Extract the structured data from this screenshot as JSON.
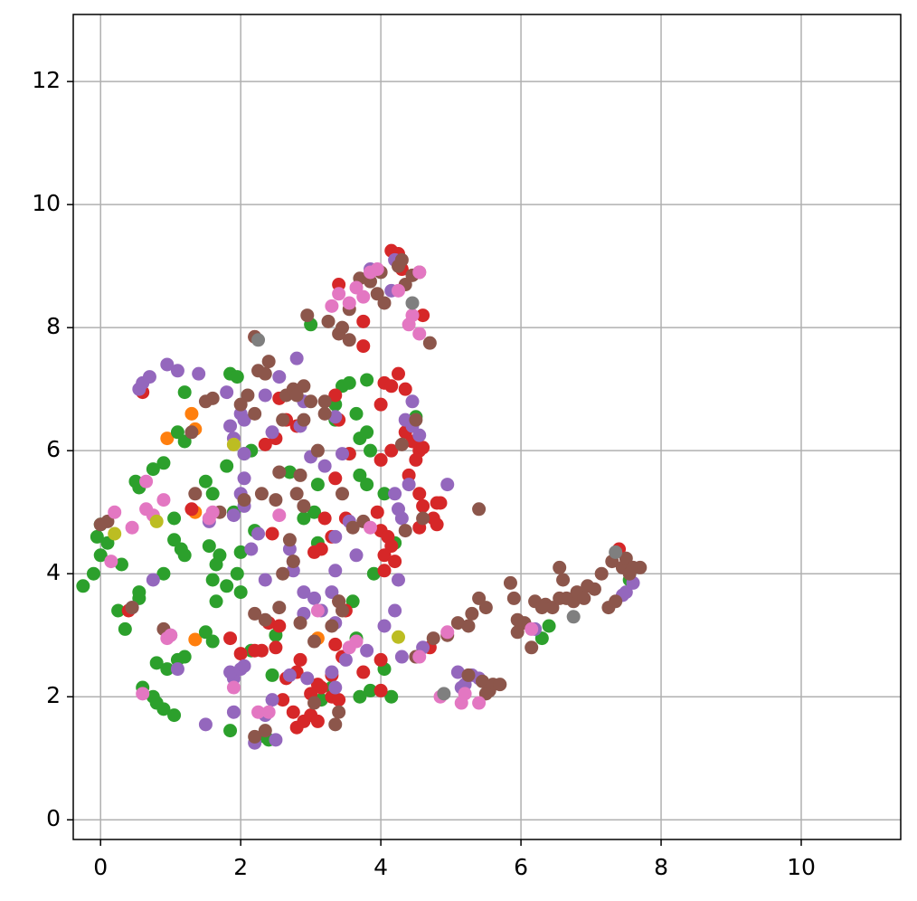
{
  "chart_data": {
    "type": "scatter",
    "grid": true,
    "xlim": [
      -0.39,
      11.42
    ],
    "ylim": [
      -0.32,
      13.09
    ],
    "xticks": [
      0,
      2,
      4,
      6,
      8,
      10
    ],
    "yticks": [
      0,
      2,
      4,
      6,
      8,
      10,
      12
    ],
    "series": [
      {
        "color": "#ff7f0e",
        "x": [
          1.3,
          0.95,
          1.35,
          1.35,
          1.35,
          3.1
        ],
        "y": [
          6.6,
          6.2,
          6.35,
          5.0,
          2.93,
          2.95
        ]
      },
      {
        "color": "#2ca02c",
        "x": [
          -0.25,
          -0.1,
          0.0,
          -0.05,
          0.0,
          0.1,
          0.3,
          0.25,
          0.35,
          0.55,
          0.55,
          0.6,
          0.75,
          0.8,
          0.9,
          1.05,
          0.8,
          0.95,
          1.1,
          1.2,
          0.9,
          1.05,
          1.15,
          1.2,
          0.55,
          0.5,
          0.75,
          0.9,
          1.1,
          1.2,
          1.2,
          1.05,
          1.5,
          1.6,
          1.55,
          1.7,
          1.65,
          1.6,
          1.65,
          1.8,
          1.5,
          1.6,
          1.85,
          2.35,
          2.4,
          2.45,
          2.15,
          2.5,
          2.7,
          2.9,
          3.05,
          3.1,
          3.1,
          3.0,
          3.35,
          3.45,
          3.55,
          3.35,
          3.55,
          3.7,
          3.8,
          3.65,
          3.7,
          3.8,
          3.8,
          3.85,
          3.9,
          4.05,
          4.2,
          4.05,
          4.15,
          3.85,
          3.7,
          3.6,
          3.65,
          3.15,
          3.3,
          4.5,
          4.4,
          6.4,
          6.3,
          7.55,
          1.85,
          1.95,
          1.8,
          1.9,
          2.05,
          2.15,
          2.0,
          1.95,
          2.0,
          2.2
        ],
        "y": [
          3.8,
          4.0,
          4.3,
          4.6,
          4.8,
          4.5,
          4.15,
          3.4,
          3.1,
          3.6,
          3.7,
          2.15,
          2.0,
          1.9,
          1.8,
          1.7,
          2.55,
          2.45,
          2.6,
          2.65,
          4.0,
          4.55,
          4.4,
          4.3,
          5.4,
          5.5,
          5.7,
          5.8,
          6.3,
          6.15,
          6.95,
          4.9,
          5.5,
          5.3,
          4.45,
          4.3,
          4.15,
          3.9,
          3.55,
          3.8,
          3.05,
          2.9,
          1.45,
          1.35,
          1.3,
          2.35,
          2.75,
          3.0,
          5.65,
          4.9,
          5.0,
          4.5,
          5.45,
          8.05,
          6.75,
          7.05,
          7.1,
          6.5,
          5.95,
          5.6,
          5.45,
          6.6,
          6.2,
          6.3,
          7.15,
          6.0,
          4.0,
          5.3,
          4.5,
          2.45,
          2.0,
          2.1,
          2.0,
          3.55,
          2.95,
          1.95,
          2.15,
          6.55,
          6.4,
          3.15,
          2.95,
          3.9,
          7.25,
          7.2,
          5.75,
          5.0,
          5.95,
          6.0,
          4.35,
          4.0,
          3.7,
          4.7
        ]
      },
      {
        "color": "#d62728",
        "x": [
          4.15,
          4.25,
          4.3,
          3.4,
          3.75,
          3.75,
          4.6,
          4.05,
          4.15,
          4.25,
          4.35,
          4.0,
          4.35,
          4.45,
          4.55,
          4.6,
          4.15,
          4.0,
          4.5,
          4.4,
          4.55,
          4.6,
          4.75,
          4.8,
          4.85,
          4.8,
          4.55,
          4.0,
          4.1,
          4.15,
          4.05,
          4.2,
          3.95,
          4.05,
          3.55,
          3.35,
          3.4,
          3.35,
          3.2,
          3.3,
          3.05,
          3.15,
          2.8,
          2.65,
          2.5,
          2.35,
          2.55,
          2.2,
          3.4,
          3.5,
          3.35,
          3.45,
          3.3,
          3.15,
          3.0,
          3.1,
          3.3,
          3.4,
          2.75,
          2.8,
          2.9,
          3.0,
          3.1,
          2.6,
          2.65,
          2.85,
          2.8,
          2.5,
          2.3,
          2.2,
          2.0,
          1.85,
          4.0,
          4.0,
          3.75,
          2.4,
          2.55,
          0.4,
          0.6,
          4.7,
          7.4,
          1.3,
          2.45,
          3.5
        ],
        "y": [
          9.25,
          9.2,
          8.95,
          8.7,
          8.1,
          7.7,
          8.2,
          7.1,
          7.05,
          7.25,
          7.0,
          6.75,
          6.3,
          6.15,
          6.0,
          6.05,
          6.0,
          5.85,
          5.85,
          5.6,
          5.3,
          5.1,
          4.9,
          5.15,
          5.15,
          4.8,
          4.75,
          4.7,
          4.6,
          4.45,
          4.3,
          4.2,
          5.0,
          4.05,
          5.95,
          6.9,
          6.5,
          5.55,
          4.9,
          4.6,
          4.35,
          4.4,
          6.4,
          6.5,
          6.2,
          6.1,
          6.85,
          7.85,
          3.55,
          3.4,
          2.85,
          2.65,
          2.35,
          2.15,
          2.05,
          2.2,
          2.0,
          1.95,
          1.75,
          1.5,
          1.6,
          1.7,
          1.6,
          1.95,
          2.3,
          2.6,
          2.4,
          2.8,
          2.75,
          2.75,
          2.7,
          2.95,
          2.6,
          2.1,
          2.4,
          3.2,
          3.15,
          3.4,
          6.95,
          2.8,
          4.4,
          5.05,
          4.65,
          4.9
        ]
      },
      {
        "color": "#9467bd",
        "x": [
          0.55,
          0.6,
          0.7,
          0.95,
          1.1,
          1.4,
          1.8,
          2.0,
          1.85,
          1.9,
          2.05,
          2.35,
          2.55,
          2.8,
          2.05,
          2.05,
          2.05,
          1.9,
          2.15,
          2.25,
          2.0,
          2.45,
          2.85,
          3.0,
          3.2,
          3.45,
          2.9,
          3.35,
          2.7,
          2.75,
          2.9,
          3.05,
          3.3,
          3.35,
          3.35,
          3.55,
          3.65,
          3.15,
          3.35,
          2.9,
          2.35,
          2.95,
          3.3,
          3.5,
          3.35,
          2.7,
          2.45,
          2.35,
          2.2,
          2.5,
          1.9,
          1.85,
          2.0,
          2.05,
          1.5,
          1.9,
          1.1,
          1.0,
          0.75,
          0.45,
          4.05,
          4.2,
          4.25,
          4.3,
          4.25,
          4.4,
          4.2,
          4.35,
          4.45,
          4.45,
          4.55,
          4.95,
          4.3,
          4.6,
          4.15,
          3.85,
          4.2,
          3.8,
          5.1,
          5.2,
          5.3,
          5.4,
          5.15,
          7.5,
          7.6,
          7.45,
          6.2,
          1.55,
          2.75
        ],
        "y": [
          7.0,
          7.1,
          7.2,
          7.4,
          7.3,
          7.25,
          6.95,
          6.6,
          6.4,
          6.2,
          6.5,
          6.9,
          7.2,
          7.5,
          5.95,
          5.55,
          5.1,
          4.95,
          4.4,
          4.65,
          5.3,
          6.3,
          6.4,
          5.9,
          5.75,
          5.95,
          6.8,
          6.55,
          4.4,
          4.05,
          3.7,
          3.6,
          3.7,
          4.05,
          4.6,
          4.85,
          4.3,
          3.4,
          3.2,
          3.35,
          3.9,
          2.3,
          2.4,
          2.6,
          2.15,
          2.35,
          1.95,
          1.7,
          1.25,
          1.3,
          2.3,
          2.4,
          2.45,
          2.5,
          1.55,
          1.75,
          2.45,
          3.0,
          3.9,
          3.45,
          3.15,
          3.4,
          3.9,
          4.9,
          5.05,
          5.45,
          5.3,
          6.5,
          6.8,
          6.4,
          6.25,
          5.45,
          2.65,
          2.8,
          8.6,
          8.95,
          9.1,
          2.75,
          2.4,
          2.2,
          2.35,
          2.3,
          2.15,
          3.7,
          3.85,
          3.65,
          3.1,
          4.85,
          4.2
        ]
      },
      {
        "color": "#8c564b",
        "x": [
          0.0,
          0.1,
          0.45,
          0.9,
          1.35,
          1.3,
          1.5,
          1.6,
          1.7,
          2.0,
          2.1,
          2.2,
          2.25,
          2.35,
          2.4,
          2.2,
          2.05,
          2.3,
          2.5,
          2.55,
          2.6,
          2.65,
          2.75,
          2.8,
          2.9,
          3.0,
          2.9,
          2.85,
          2.8,
          2.9,
          2.7,
          2.75,
          2.6,
          2.55,
          2.35,
          2.2,
          2.85,
          3.05,
          3.3,
          3.45,
          3.4,
          3.45,
          3.6,
          3.75,
          3.2,
          3.2,
          3.1,
          2.95,
          3.25,
          3.4,
          3.55,
          3.45,
          3.55,
          3.7,
          3.85,
          3.95,
          4.05,
          4.0,
          4.25,
          4.3,
          4.35,
          4.45,
          4.55,
          4.7,
          4.5,
          4.3,
          4.35,
          4.6,
          4.5,
          4.75,
          4.95,
          5.1,
          5.25,
          5.3,
          5.4,
          5.5,
          5.25,
          5.45,
          5.55,
          5.6,
          5.7,
          5.5,
          5.85,
          5.9,
          5.95,
          5.95,
          6.05,
          6.15,
          6.2,
          6.3,
          6.35,
          6.45,
          6.55,
          6.55,
          6.6,
          6.65,
          6.75,
          6.8,
          6.9,
          6.95,
          7.05,
          7.15,
          7.25,
          7.3,
          7.35,
          7.45,
          7.5,
          7.6,
          7.7,
          7.55,
          5.4,
          3.35,
          3.4,
          2.35,
          2.2,
          3.05
        ],
        "y": [
          4.8,
          4.85,
          3.45,
          3.1,
          5.3,
          6.3,
          6.8,
          6.85,
          5.0,
          6.75,
          6.9,
          6.6,
          7.3,
          7.25,
          7.45,
          7.85,
          5.2,
          5.3,
          5.2,
          5.65,
          6.5,
          6.9,
          7.0,
          6.9,
          7.05,
          6.8,
          6.5,
          5.6,
          5.3,
          5.1,
          4.55,
          4.2,
          4.0,
          3.45,
          3.25,
          3.35,
          3.2,
          2.9,
          3.15,
          3.4,
          3.55,
          5.3,
          4.75,
          4.85,
          6.6,
          6.8,
          6.0,
          8.2,
          8.1,
          7.9,
          7.8,
          8.0,
          8.3,
          8.8,
          8.75,
          8.55,
          8.4,
          8.9,
          9.0,
          9.1,
          8.7,
          8.85,
          8.9,
          7.75,
          6.5,
          6.1,
          4.7,
          4.9,
          2.65,
          2.95,
          3.0,
          3.2,
          3.15,
          3.35,
          3.6,
          3.45,
          2.35,
          2.25,
          2.1,
          2.2,
          2.2,
          2.05,
          3.85,
          3.6,
          3.25,
          3.05,
          3.2,
          2.8,
          3.55,
          3.45,
          3.5,
          3.45,
          3.6,
          4.1,
          3.9,
          3.6,
          3.55,
          3.7,
          3.6,
          3.8,
          3.75,
          4.0,
          3.45,
          4.2,
          3.55,
          4.1,
          4.25,
          4.1,
          4.1,
          4.0,
          5.05,
          1.55,
          1.75,
          1.45,
          1.35,
          1.9
        ]
      },
      {
        "color": "#e377c2",
        "x": [
          0.15,
          0.2,
          0.45,
          0.65,
          0.65,
          0.75,
          0.9,
          0.95,
          1.0,
          0.6,
          1.55,
          1.6,
          1.9,
          2.25,
          2.4,
          2.55,
          3.1,
          3.55,
          3.65,
          3.3,
          3.4,
          3.55,
          3.65,
          3.75,
          3.85,
          3.95,
          4.25,
          4.4,
          4.45,
          4.55,
          4.55,
          4.95,
          4.85,
          5.15,
          5.2,
          5.4,
          6.15,
          4.55,
          1.9,
          3.85
        ],
        "y": [
          4.2,
          5.0,
          4.75,
          5.05,
          5.5,
          4.95,
          5.2,
          2.95,
          3.0,
          2.05,
          4.9,
          5.0,
          2.15,
          1.75,
          1.75,
          4.95,
          3.4,
          2.8,
          2.9,
          8.35,
          8.55,
          8.4,
          8.65,
          8.5,
          8.9,
          8.95,
          8.6,
          8.05,
          8.2,
          7.9,
          8.9,
          3.05,
          2.0,
          1.9,
          2.05,
          1.9,
          3.1,
          2.65,
          6.1,
          4.75
        ]
      },
      {
        "color": "#7f7f7f",
        "x": [
          2.25,
          4.45,
          4.9,
          7.35,
          6.75
        ],
        "y": [
          7.8,
          8.4,
          2.05,
          4.35,
          3.3
        ]
      },
      {
        "color": "#bcbd22",
        "x": [
          1.9,
          0.8,
          0.2,
          4.25
        ],
        "y": [
          6.1,
          4.85,
          4.65,
          2.97
        ]
      }
    ]
  }
}
